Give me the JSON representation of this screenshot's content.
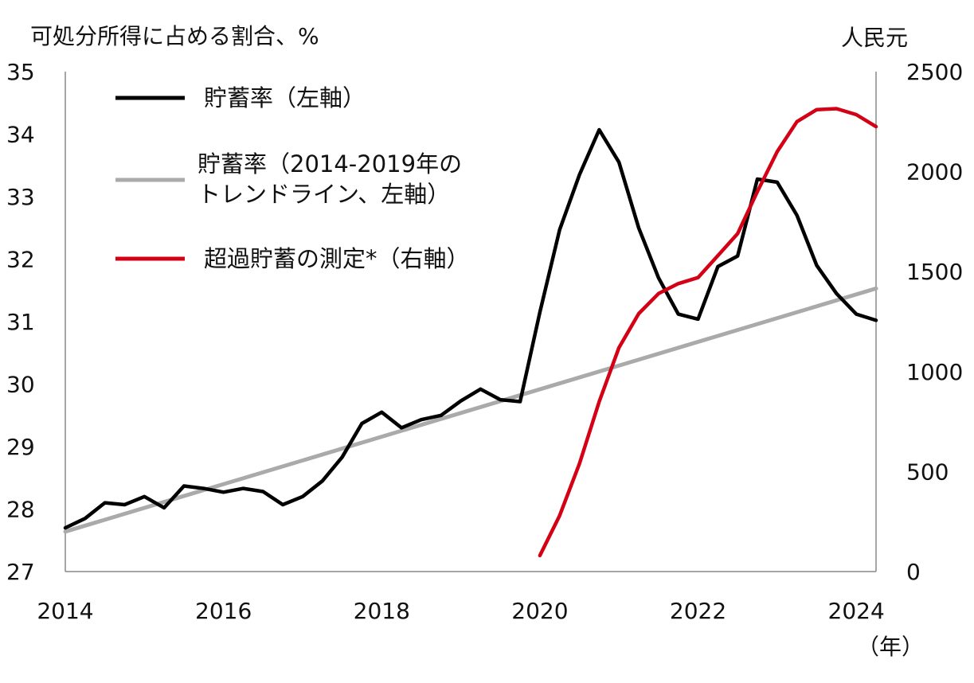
{
  "chart_data": {
    "type": "line",
    "y_left_label": "可処分所得に占める割合、%",
    "y_right_label": "人民元",
    "x_unit_label": "（年）",
    "x_ticks": [
      "2014",
      "2016",
      "2018",
      "2020",
      "2022",
      "2024"
    ],
    "y_left_ticks": [
      "35",
      "34",
      "33",
      "32",
      "31",
      "30",
      "29",
      "28",
      "27"
    ],
    "y_right_ticks": [
      "2500",
      "2000",
      "1500",
      "1000",
      "500",
      "0"
    ],
    "xlim": [
      2014.0,
      2024.25
    ],
    "ylim_left": [
      27,
      35
    ],
    "ylim_right": [
      0,
      2500
    ],
    "grid": false,
    "legend_position": "top-left",
    "series": [
      {
        "name": "貯蓄率（左軸）",
        "axis": "left",
        "color": "#000000",
        "x": [
          2014.0,
          2014.25,
          2014.5,
          2014.75,
          2015.0,
          2015.25,
          2015.5,
          2015.75,
          2016.0,
          2016.25,
          2016.5,
          2016.75,
          2017.0,
          2017.25,
          2017.5,
          2017.75,
          2018.0,
          2018.25,
          2018.5,
          2018.75,
          2019.0,
          2019.25,
          2019.5,
          2019.75,
          2020.0,
          2020.25,
          2020.5,
          2020.75,
          2021.0,
          2021.25,
          2021.5,
          2021.75,
          2022.0,
          2022.25,
          2022.5,
          2022.75,
          2023.0,
          2023.25,
          2023.5,
          2023.75,
          2024.0,
          2024.25
        ],
        "values": [
          27.7,
          27.85,
          28.1,
          28.07,
          28.2,
          28.02,
          28.37,
          28.33,
          28.27,
          28.33,
          28.28,
          28.07,
          28.2,
          28.45,
          28.83,
          29.37,
          29.55,
          29.3,
          29.43,
          29.5,
          29.73,
          29.92,
          29.75,
          29.72,
          31.15,
          32.47,
          33.35,
          34.07,
          33.55,
          32.5,
          31.7,
          31.12,
          31.04,
          31.88,
          32.05,
          33.28,
          33.23,
          32.7,
          31.9,
          31.45,
          31.12,
          31.02
        ]
      },
      {
        "name": "貯蓄率（2014-2019年のトレンドライン、左軸）",
        "axis": "left",
        "color": "#aaaaaa",
        "x": [
          2014.0,
          2024.25
        ],
        "values": [
          27.64,
          31.53
        ]
      },
      {
        "name": "超過貯蓄の測定*（右軸）",
        "axis": "right",
        "color": "#d40015",
        "x": [
          2020.0,
          2020.25,
          2020.5,
          2020.75,
          2021.0,
          2021.25,
          2021.5,
          2021.75,
          2022.0,
          2022.25,
          2022.5,
          2022.75,
          2023.0,
          2023.25,
          2023.5,
          2023.75,
          2024.0,
          2024.25
        ],
        "values": [
          80,
          280,
          540,
          850,
          1120,
          1290,
          1390,
          1440,
          1470,
          1580,
          1690,
          1900,
          2100,
          2250,
          2310,
          2315,
          2285,
          2225
        ]
      }
    ]
  }
}
